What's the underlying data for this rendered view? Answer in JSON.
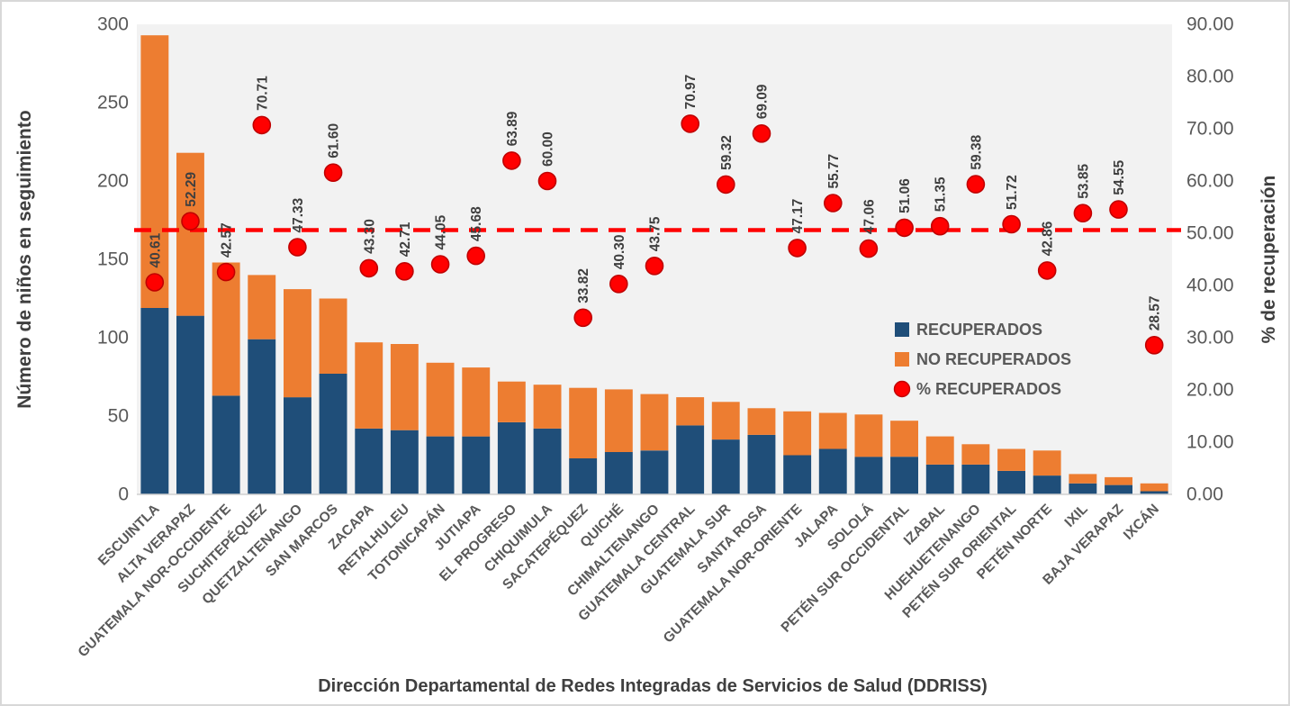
{
  "chart_data": {
    "type": "combo_stacked_bar_with_points",
    "categories": [
      "ESCUINTLA",
      "ALTA VERAPAZ",
      "GUATEMALA NOR-OCCIDENTE",
      "SUCHITEPÉQUEZ",
      "QUETZALTENANGO",
      "SAN MARCOS",
      "ZACAPA",
      "RETALHULEU",
      "TOTONICAPÁN",
      "JUTIAPA",
      "EL PROGRESO",
      "CHIQUIMULA",
      "SACATEPÉQUEZ",
      "QUICHÉ",
      "CHIMALTENANGO",
      "GUATEMALA CENTRAL",
      "GUATEMALA SUR",
      "SANTA ROSA",
      "GUATEMALA NOR-ORIENTE",
      "JALAPA",
      "SOLOLÁ",
      "PETÉN SUR OCCIDENTAL",
      "IZABAL",
      "HUEHUETENANGO",
      "PETÉN SUR ORIENTAL",
      "PETÉN NORTE",
      "IXIL",
      "BAJA VERAPAZ",
      "IXCÁN"
    ],
    "series": [
      {
        "name": "RECUPERADOS",
        "type": "bar",
        "stack": "total",
        "axis": "left",
        "color": "#1f4e79",
        "values": [
          119,
          114,
          63,
          99,
          62,
          77,
          42,
          41,
          37,
          37,
          46,
          42,
          23,
          27,
          28,
          44,
          35,
          38,
          25,
          29,
          24,
          24,
          19,
          19,
          15,
          12,
          7,
          6,
          2
        ]
      },
      {
        "name": "NO RECUPERADOS",
        "type": "bar",
        "stack": "total",
        "axis": "left",
        "color": "#ed7d31",
        "values": [
          174,
          104,
          85,
          41,
          69,
          48,
          55,
          55,
          47,
          44,
          26,
          28,
          45,
          40,
          36,
          18,
          24,
          17,
          28,
          23,
          27,
          23,
          18,
          13,
          14,
          16,
          6,
          5,
          5
        ]
      },
      {
        "name": "% RECUPERADOS",
        "type": "point",
        "axis": "right",
        "color": "#ff0000",
        "values": [
          40.61,
          52.29,
          42.57,
          70.71,
          47.33,
          61.6,
          43.3,
          42.71,
          44.05,
          45.68,
          63.89,
          60.0,
          33.82,
          40.3,
          43.75,
          70.97,
          59.32,
          69.09,
          47.17,
          55.77,
          47.06,
          51.06,
          51.35,
          59.38,
          51.72,
          42.86,
          53.85,
          54.55,
          28.57
        ]
      }
    ],
    "point_labels": [
      "40.61",
      "52.29",
      "42.57",
      "70.71",
      "47.33",
      "61.60",
      "43.30",
      "42.71",
      "44.05",
      "45.68",
      "63.89",
      "60.00",
      "33.82",
      "40.30",
      "43.75",
      "70.97",
      "59.32",
      "69.09",
      "47.17",
      "55.77",
      "47.06",
      "51.06",
      "51.35",
      "59.38",
      "51.72",
      "42.86",
      "53.85",
      "54.55",
      "28.57"
    ],
    "left_axis": {
      "title": "Número de niños en seguimiento",
      "min": 0,
      "max": 300,
      "step": 50,
      "tick_labels": [
        "0",
        "50",
        "100",
        "150",
        "200",
        "250",
        "300"
      ]
    },
    "right_axis": {
      "title": "% de recuperación",
      "min": 0,
      "max": 90,
      "step": 10,
      "tick_labels": [
        "0.00",
        "10.00",
        "20.00",
        "30.00",
        "40.00",
        "50.00",
        "60.00",
        "70.00",
        "80.00",
        "90.00"
      ]
    },
    "x_axis": {
      "title": "Dirección Departamental de Redes Integradas de Servicios de Salud (DDRISS)"
    },
    "reference_line": {
      "axis": "right",
      "value": 50.6,
      "color": "#ff0000",
      "style": "dashed"
    },
    "legend": [
      {
        "label": "RECUPERADOS",
        "marker": "square",
        "color": "#1f4e79"
      },
      {
        "label": "NO RECUPERADOS",
        "marker": "square",
        "color": "#ed7d31"
      },
      {
        "label": "% RECUPERADOS",
        "marker": "circle",
        "color": "#ff0000"
      }
    ],
    "colors": {
      "plot_background": "#f2f2f2",
      "axis_text": "#595959",
      "label_text": "#3f3f3f",
      "point_stroke": "#c00000",
      "baseline": "#d0d0d0"
    },
    "legend_position": "inside-right"
  }
}
